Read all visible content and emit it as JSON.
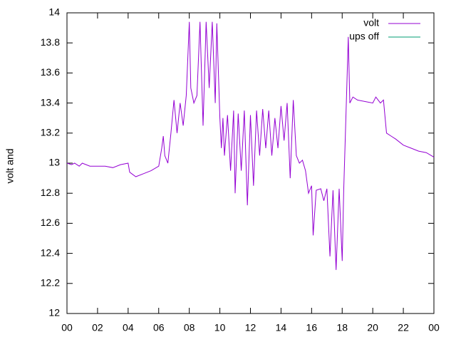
{
  "chart_data": {
    "type": "line",
    "ylabel": "volt and",
    "xlim": [
      0,
      24
    ],
    "ylim": [
      12,
      14
    ],
    "xticks": [
      {
        "value": 0,
        "label": "00"
      },
      {
        "value": 2,
        "label": "02"
      },
      {
        "value": 4,
        "label": "04"
      },
      {
        "value": 6,
        "label": "06"
      },
      {
        "value": 8,
        "label": "08"
      },
      {
        "value": 10,
        "label": "10"
      },
      12,
      14,
      16,
      18,
      20,
      22,
      {
        "value": 24,
        "label": "00"
      }
    ],
    "yticks": [
      12,
      12.2,
      12.4,
      12.6,
      12.8,
      13,
      13.2,
      13.4,
      13.6,
      13.8,
      14
    ],
    "legend": "top-right",
    "series": [
      {
        "name": "volt",
        "color": "#9400d3",
        "x": [
          0,
          0.3,
          0.5,
          0.8,
          1.0,
          1.5,
          2.0,
          2.5,
          3.0,
          3.5,
          4.0,
          4.1,
          4.5,
          5.0,
          5.5,
          6.0,
          6.2,
          6.3,
          6.4,
          6.6,
          6.8,
          7.0,
          7.2,
          7.4,
          7.6,
          7.8,
          8.0,
          8.1,
          8.3,
          8.5,
          8.7,
          8.9,
          9.1,
          9.3,
          9.5,
          9.7,
          9.8,
          10.0,
          10.1,
          10.2,
          10.3,
          10.5,
          10.7,
          10.9,
          11.0,
          11.2,
          11.4,
          11.6,
          11.8,
          12.0,
          12.2,
          12.4,
          12.6,
          12.8,
          13.0,
          13.2,
          13.4,
          13.6,
          13.8,
          14.0,
          14.2,
          14.4,
          14.6,
          14.8,
          15.0,
          15.2,
          15.4,
          15.6,
          15.8,
          16.0,
          16.1,
          16.3,
          16.6,
          16.8,
          17.0,
          17.2,
          17.4,
          17.6,
          17.8,
          18.0,
          18.1,
          18.3,
          18.4,
          18.5,
          18.7,
          19.0,
          19.5,
          20.0,
          20.2,
          20.5,
          20.7,
          20.9,
          21.2,
          21.5,
          22.0,
          22.5,
          23.0,
          23.5,
          24.0
        ],
        "values": [
          13.0,
          12.99,
          13.0,
          12.98,
          13.0,
          12.98,
          12.98,
          12.98,
          12.97,
          12.99,
          13.0,
          12.94,
          12.91,
          12.93,
          12.95,
          12.98,
          13.1,
          13.18,
          13.05,
          13.0,
          13.2,
          13.42,
          13.2,
          13.4,
          13.25,
          13.45,
          13.94,
          13.5,
          13.4,
          13.45,
          13.94,
          13.25,
          13.94,
          13.5,
          13.94,
          13.4,
          13.93,
          13.3,
          13.1,
          13.3,
          13.05,
          13.32,
          12.95,
          13.35,
          12.8,
          13.33,
          12.95,
          13.35,
          12.72,
          13.32,
          12.85,
          13.35,
          13.05,
          13.36,
          13.1,
          13.35,
          13.05,
          13.3,
          13.1,
          13.38,
          13.15,
          13.4,
          12.9,
          13.42,
          13.05,
          13.0,
          13.02,
          12.95,
          12.8,
          12.85,
          12.52,
          12.82,
          12.83,
          12.75,
          12.83,
          12.38,
          12.82,
          12.29,
          12.83,
          12.35,
          12.82,
          13.5,
          13.84,
          13.4,
          13.44,
          13.42,
          13.41,
          13.4,
          13.44,
          13.4,
          13.42,
          13.2,
          13.18,
          13.16,
          13.12,
          13.1,
          13.08,
          13.07,
          13.04
        ]
      },
      {
        "name": "ups off",
        "color": "#009e73",
        "x": [],
        "values": []
      }
    ]
  }
}
